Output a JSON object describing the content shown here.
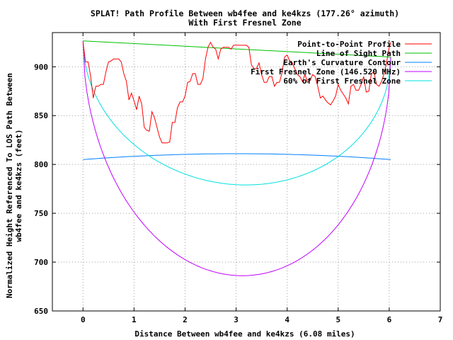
{
  "chart_data": {
    "type": "line",
    "title": "SPLAT! Path Profile Between wb4fee and ke4kzs (177.26° azimuth)",
    "subtitle": "With First Fresnel Zone",
    "xlabel": "Distance Between wb4fee and ke4kzs (6.08 miles)",
    "ylabel": "Normalized Height Referenced To LOS Path Between",
    "ylabel2": "wb4fee and ke4kzs (feet)",
    "xlim": [
      -0.6,
      7
    ],
    "ylim": [
      650,
      935
    ],
    "xticks": [
      0,
      1,
      2,
      3,
      4,
      5,
      6,
      7
    ],
    "yticks": [
      650,
      700,
      750,
      800,
      850,
      900
    ],
    "grid": true,
    "legend_position": "top-right",
    "series": [
      {
        "name": "Point-to-Point Profile",
        "color": "#ff0000",
        "x": [
          0,
          0.05,
          0.1,
          0.15,
          0.2,
          0.25,
          0.3,
          0.35,
          0.4,
          0.45,
          0.5,
          0.55,
          0.6,
          0.65,
          0.7,
          0.75,
          0.8,
          0.85,
          0.9,
          0.95,
          1.0,
          1.05,
          1.1,
          1.15,
          1.2,
          1.25,
          1.3,
          1.35,
          1.4,
          1.45,
          1.5,
          1.55,
          1.6,
          1.65,
          1.7,
          1.75,
          1.8,
          1.85,
          1.9,
          1.95,
          2.0,
          2.05,
          2.1,
          2.15,
          2.2,
          2.25,
          2.3,
          2.35,
          2.4,
          2.45,
          2.5,
          2.55,
          2.6,
          2.65,
          2.7,
          2.75,
          2.8,
          2.85,
          2.9,
          2.95,
          3.0,
          3.05,
          3.1,
          3.15,
          3.2,
          3.25,
          3.3,
          3.35,
          3.4,
          3.45,
          3.5,
          3.55,
          3.6,
          3.65,
          3.7,
          3.75,
          3.8,
          3.85,
          3.9,
          3.95,
          4.0,
          4.05,
          4.1,
          4.15,
          4.2,
          4.25,
          4.3,
          4.35,
          4.4,
          4.45,
          4.5,
          4.55,
          4.6,
          4.65,
          4.7,
          4.75,
          4.8,
          4.85,
          4.9,
          4.95,
          5.0,
          5.05,
          5.1,
          5.15,
          5.2,
          5.25,
          5.3,
          5.35,
          5.4,
          5.45,
          5.5,
          5.55,
          5.6,
          5.65,
          5.7,
          5.75,
          5.8,
          5.85,
          5.9,
          5.95,
          6.0,
          6.03
        ],
        "y": [
          925,
          905,
          905,
          890,
          868,
          880,
          880,
          882,
          882,
          895,
          905,
          906,
          908,
          908,
          908,
          905,
          893,
          885,
          866,
          873,
          865,
          856,
          870,
          862,
          838,
          835,
          834,
          854,
          848,
          838,
          828,
          822,
          822,
          822,
          823,
          843,
          843,
          858,
          864,
          864,
          870,
          884,
          885,
          893,
          893,
          882,
          882,
          888,
          908,
          920,
          925,
          920,
          918,
          908,
          918,
          920,
          920,
          920,
          918,
          922,
          922,
          922,
          922,
          922,
          922,
          920,
          902,
          898,
          898,
          904,
          892,
          884,
          884,
          890,
          890,
          880,
          884,
          884,
          894,
          910,
          912,
          906,
          904,
          898,
          892,
          890,
          885,
          892,
          884,
          886,
          892,
          890,
          880,
          868,
          870,
          866,
          863,
          861,
          865,
          870,
          882,
          876,
          872,
          868,
          862,
          880,
          882,
          876,
          876,
          882,
          890,
          874,
          875,
          893,
          895,
          882,
          880,
          885,
          893,
          905,
          920,
          925
        ]
      },
      {
        "name": "Line of Sight Path",
        "color": "#00c000",
        "x": [
          0,
          6.03
        ],
        "y": [
          926.5,
          910
        ]
      },
      {
        "name": "Earth's Curvature Contour",
        "color": "#0080ff",
        "curve": "arc",
        "x_end": 6.03,
        "end_value": 805,
        "mid_value": 811
      },
      {
        "name": "First Fresnel Zone (146.520 MHz)",
        "color": "#c000ff",
        "curve": "fresnel",
        "x_end": 6.03,
        "start_value": 926.5,
        "end_value": 910,
        "depth": 232
      },
      {
        "name": "60% of First Fresnel Zone",
        "color": "#00e0e0",
        "curve": "fresnel",
        "x_end": 6.03,
        "start_value": 926.5,
        "end_value": 910,
        "depth": 139
      }
    ]
  }
}
